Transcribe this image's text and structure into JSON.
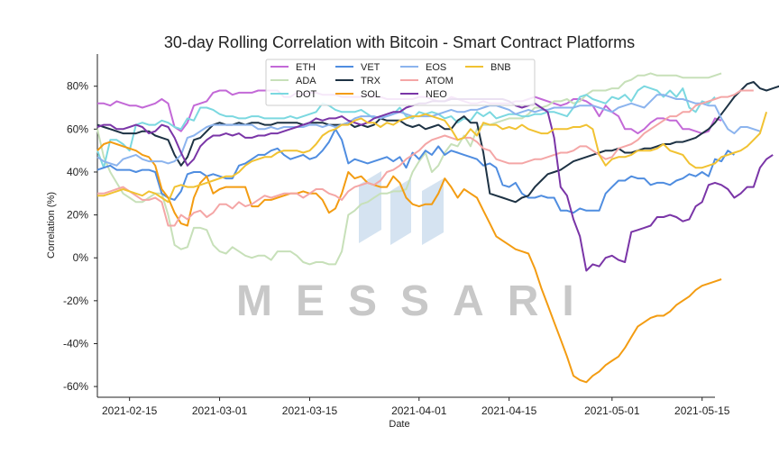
{
  "chart_data": {
    "type": "line",
    "title": "30-day Rolling Correlation with Bitcoin - Smart Contract Platforms",
    "xlabel": "Date",
    "ylabel": "Correlation (%)",
    "x_start": "2021-02-10",
    "x_step_days": 1,
    "x_ticks": [
      "2021-02-15",
      "2021-03-01",
      "2021-03-15",
      "2021-04-01",
      "2021-04-15",
      "2021-05-01",
      "2021-05-15"
    ],
    "ylim": [
      -65,
      95
    ],
    "y_ticks": [
      -60,
      -40,
      -20,
      0,
      20,
      40,
      60,
      80
    ],
    "y_tick_format": "{v}%",
    "legend_position": "top-center",
    "watermark": "MESSARI",
    "series": [
      {
        "name": "ETH",
        "color": "#c369d7",
        "values": [
          72,
          72,
          71,
          73,
          72,
          71,
          71,
          70,
          71,
          72,
          74,
          72,
          61,
          59,
          63,
          71,
          72,
          73,
          77,
          78,
          78,
          76,
          77,
          77,
          77,
          78,
          78,
          78,
          78,
          75,
          75,
          77,
          76,
          77,
          77,
          76,
          76,
          76,
          75,
          75,
          75,
          75,
          76,
          75,
          75,
          74,
          74,
          74,
          74,
          74,
          75,
          75,
          74,
          73,
          73,
          75,
          74,
          73,
          72,
          72,
          73,
          72,
          72,
          72,
          72,
          73,
          73,
          74,
          75,
          74,
          73,
          72,
          71,
          72,
          74,
          74,
          73,
          71,
          66,
          71,
          68,
          66,
          60,
          60,
          58,
          60,
          63,
          65,
          65,
          64,
          64,
          60,
          60,
          59,
          58,
          59,
          65,
          64
        ]
      },
      {
        "name": "ADA",
        "color": "#c7e0b9",
        "values": [
          60,
          47,
          40,
          35,
          30,
          28,
          26,
          26,
          28,
          30,
          30,
          20,
          6,
          4,
          5,
          14,
          14,
          13,
          6,
          3,
          2,
          5,
          3,
          1,
          0,
          1,
          1,
          -1,
          3,
          3,
          3,
          1,
          -2,
          -3,
          -2,
          -2,
          -3,
          -3,
          3,
          20,
          22,
          25,
          26,
          28,
          30,
          30,
          31,
          31,
          32,
          40,
          45,
          49,
          40,
          43,
          49,
          53,
          52,
          57,
          52,
          60,
          62,
          62,
          63,
          64,
          65,
          65,
          65,
          67,
          70,
          70,
          71,
          73,
          73,
          74,
          72,
          73,
          76,
          78,
          78,
          78,
          79,
          79,
          82,
          83,
          85,
          85,
          86,
          85,
          85,
          85,
          85,
          84,
          84,
          84,
          84,
          84,
          85,
          86
        ]
      },
      {
        "name": "DOT",
        "color": "#7bd8e0",
        "values": [
          50,
          42,
          55,
          55,
          53,
          50,
          62,
          63,
          62,
          62,
          64,
          63,
          61,
          60,
          65,
          64,
          70,
          70,
          69,
          67,
          66,
          66,
          65,
          65,
          66,
          66,
          65,
          65,
          65,
          65,
          66,
          65,
          66,
          67,
          68,
          72,
          71,
          69,
          68,
          68,
          68,
          69,
          67,
          65,
          66,
          66,
          67,
          70,
          66,
          65,
          68,
          67,
          68,
          67,
          65,
          66,
          63,
          65,
          64,
          68,
          66,
          68,
          65,
          66,
          67,
          67,
          66,
          66,
          67,
          67,
          68,
          68,
          67,
          66,
          70,
          75,
          76,
          74,
          73,
          72,
          75,
          74,
          76,
          73,
          78,
          80,
          79,
          78,
          75,
          78,
          75,
          79,
          70,
          68,
          73,
          72,
          75
        ]
      },
      {
        "name": "VET",
        "color": "#4f8de0",
        "values": [
          41,
          42,
          43,
          41,
          41,
          41,
          40,
          41,
          41,
          40,
          30,
          28,
          27,
          31,
          39,
          40,
          40,
          38,
          39,
          38,
          37,
          37,
          43,
          44,
          46,
          48,
          48,
          50,
          51,
          48,
          46,
          47,
          48,
          46,
          47,
          50,
          54,
          60,
          55,
          44,
          46,
          45,
          44,
          45,
          46,
          47,
          45,
          47,
          42,
          49,
          46,
          50,
          48,
          52,
          48,
          50,
          49,
          48,
          47,
          46,
          43,
          44,
          42,
          34,
          33,
          35,
          30,
          28,
          28,
          29,
          28,
          28,
          22,
          22,
          21,
          23,
          22,
          22,
          22,
          30,
          33,
          36,
          36,
          38,
          37,
          37,
          34,
          35,
          35,
          34,
          36,
          37,
          39,
          38,
          40,
          38,
          46,
          45,
          50,
          48
        ]
      },
      {
        "name": "TRX",
        "color": "#1d3244",
        "values": [
          62,
          61,
          60,
          59,
          58,
          58,
          58,
          59,
          59,
          57,
          56,
          55,
          48,
          43,
          47,
          55,
          56,
          59,
          62,
          63,
          62,
          62,
          63,
          62,
          63,
          63,
          62,
          62,
          63,
          63,
          63,
          63,
          62,
          63,
          63,
          63,
          62,
          62,
          62,
          63,
          61,
          62,
          61,
          62,
          65,
          64,
          64,
          64,
          62,
          61,
          62,
          60,
          61,
          62,
          60,
          60,
          64,
          66,
          63,
          63,
          49,
          30,
          29,
          28,
          27,
          26,
          28,
          29,
          33,
          36,
          39,
          40,
          41,
          43,
          45,
          46,
          47,
          48,
          49,
          50,
          50,
          51,
          49,
          49,
          50,
          51,
          51,
          52,
          53,
          53,
          54,
          54,
          55,
          56,
          58,
          60,
          63,
          67,
          71,
          75,
          78,
          81,
          82,
          79,
          78,
          79,
          80,
          81,
          80
        ]
      },
      {
        "name": "SOL",
        "color": "#f39c12",
        "values": [
          50,
          53,
          54,
          53,
          52,
          51,
          50,
          48,
          47,
          43,
          32,
          28,
          21,
          16,
          15,
          28,
          35,
          38,
          30,
          32,
          33,
          33,
          33,
          33,
          24,
          24,
          27,
          27,
          28,
          29,
          30,
          30,
          31,
          30,
          30,
          27,
          21,
          23,
          30,
          40,
          37,
          38,
          35,
          34,
          33,
          33,
          38,
          35,
          28,
          25,
          24,
          25,
          25,
          30,
          37,
          33,
          28,
          32,
          30,
          28,
          22,
          16,
          10,
          8,
          6,
          4,
          3,
          2,
          -5,
          -14,
          -22,
          -30,
          -38,
          -46,
          -55,
          -57,
          -58,
          -55,
          -53,
          -50,
          -48,
          -46,
          -42,
          -37,
          -32,
          -30,
          -28,
          -27,
          -27,
          -25,
          -22,
          -20,
          -18,
          -15,
          -13,
          -12,
          -11,
          -10
        ]
      },
      {
        "name": "EOS",
        "color": "#8cb4ee",
        "values": [
          47,
          45,
          44,
          43,
          46,
          47,
          48,
          46,
          45,
          45,
          45,
          44,
          45,
          48,
          56,
          57,
          59,
          61,
          62,
          62,
          62,
          62,
          62,
          62,
          62,
          60,
          60,
          61,
          60,
          61,
          61,
          61,
          61,
          62,
          62,
          61,
          62,
          61,
          62,
          63,
          65,
          66,
          66,
          66,
          65,
          66,
          67,
          68,
          67,
          66,
          66,
          66,
          66,
          67,
          68,
          69,
          68,
          68,
          69,
          69,
          70,
          71,
          71,
          70,
          69,
          67,
          68,
          69,
          68,
          69,
          69,
          70,
          70,
          70,
          70,
          71,
          71,
          71,
          70,
          69,
          68,
          70,
          71,
          72,
          71,
          70,
          73,
          76,
          76,
          75,
          74,
          74,
          73,
          72,
          72,
          71,
          71,
          65,
          60,
          58,
          61,
          61,
          60,
          59
        ]
      },
      {
        "name": "ATOM",
        "color": "#f4a6a6",
        "values": [
          30,
          30,
          31,
          32,
          33,
          31,
          29,
          27,
          27,
          28,
          26,
          15,
          15,
          20,
          18,
          21,
          22,
          19,
          21,
          25,
          25,
          23,
          26,
          24,
          25,
          27,
          29,
          28,
          29,
          30,
          30,
          30,
          28,
          30,
          32,
          32,
          30,
          29,
          27,
          31,
          33,
          34,
          35,
          34,
          36,
          40,
          41,
          43,
          46,
          48,
          50,
          53,
          55,
          56,
          57,
          56,
          55,
          56,
          56,
          54,
          51,
          50,
          46,
          45,
          44,
          44,
          44,
          45,
          46,
          46,
          47,
          48,
          49,
          49,
          50,
          52,
          52,
          50,
          48,
          46,
          47,
          51,
          52,
          53,
          55,
          58,
          60,
          62,
          64,
          66,
          66,
          68,
          68,
          71,
          72,
          73,
          74,
          75,
          75,
          76,
          78,
          78,
          78
        ]
      },
      {
        "name": "NEO",
        "color": "#7a35a7",
        "values": [
          61,
          62,
          62,
          60,
          60,
          61,
          62,
          61,
          58,
          59,
          62,
          61,
          56,
          49,
          43,
          46,
          52,
          55,
          57,
          57,
          58,
          57,
          58,
          56,
          56,
          57,
          57,
          58,
          58,
          59,
          60,
          61,
          62,
          63,
          65,
          64,
          65,
          65,
          66,
          64,
          63,
          62,
          63,
          65,
          66,
          67,
          68,
          68,
          70,
          71,
          72,
          72,
          73,
          73,
          73,
          74,
          74,
          74,
          74,
          74,
          74,
          74,
          74,
          74,
          73,
          71,
          70,
          71,
          72,
          70,
          68,
          56,
          33,
          29,
          18,
          10,
          -6,
          -3,
          -4,
          0,
          1,
          -1,
          -2,
          12,
          13,
          14,
          15,
          19,
          19,
          20,
          19,
          17,
          18,
          24,
          26,
          34,
          35,
          34,
          32,
          28,
          30,
          33,
          33,
          42,
          46,
          48
        ]
      },
      {
        "name": "BNB",
        "color": "#f1c232",
        "values": [
          29,
          29,
          30,
          31,
          32,
          31,
          30,
          29,
          31,
          30,
          28,
          26,
          33,
          34,
          33,
          33,
          34,
          35,
          36,
          37,
          38,
          38,
          40,
          43,
          45,
          46,
          47,
          47,
          49,
          50,
          50,
          50,
          49,
          50,
          53,
          57,
          59,
          60,
          62,
          62,
          64,
          65,
          63,
          63,
          61,
          63,
          62,
          64,
          65,
          66,
          66,
          67,
          66,
          65,
          64,
          60,
          55,
          56,
          60,
          57,
          63,
          62,
          62,
          60,
          61,
          60,
          62,
          60,
          59,
          58,
          58,
          60,
          60,
          60,
          61,
          61,
          62,
          60,
          48,
          43,
          46,
          47,
          47,
          48,
          50,
          50,
          50,
          51,
          53,
          50,
          49,
          48,
          44,
          42,
          42,
          43,
          44,
          47,
          48,
          49,
          50,
          52,
          55,
          58,
          68
        ]
      }
    ]
  }
}
